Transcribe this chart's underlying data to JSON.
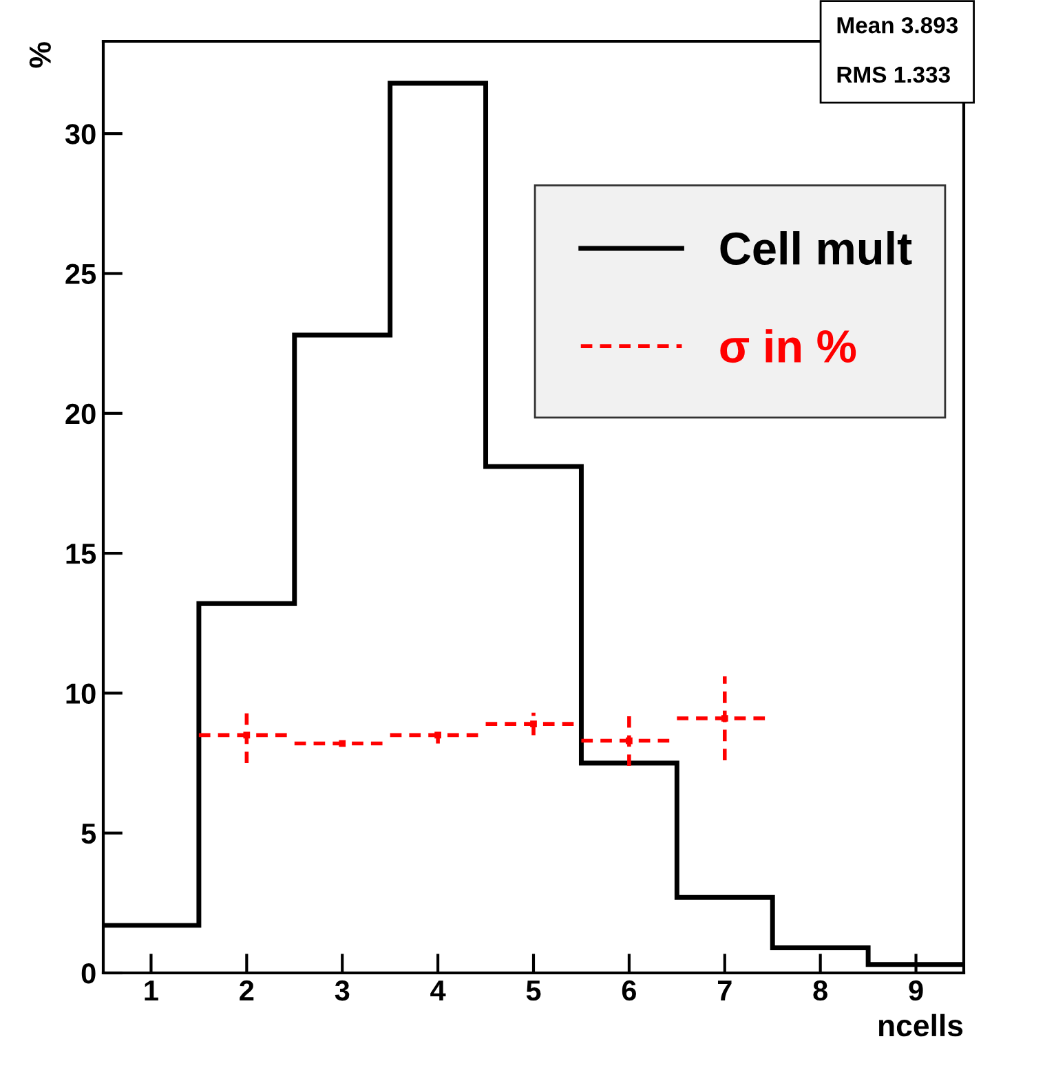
{
  "chart_data": {
    "type": "histogram",
    "xlabel": "ncells",
    "ylabel": "%",
    "bins": [
      0.5,
      1.5,
      2.5,
      3.5,
      4.5,
      5.5,
      6.5,
      7.5,
      8.5,
      9.5
    ],
    "series": [
      {
        "name": "Cell mult",
        "color": "#000000",
        "values": [
          1.7,
          13.2,
          22.8,
          31.8,
          18.1,
          7.5,
          2.7,
          0.9,
          0.3
        ]
      },
      {
        "name": "σ in %",
        "type": "scatter",
        "color": "#ff0000",
        "marker": "square",
        "line_style": "dashed",
        "x": [
          2,
          3,
          4,
          5,
          6,
          7
        ],
        "values": [
          8.5,
          8.2,
          8.5,
          8.9,
          8.3,
          9.1
        ],
        "errors": [
          1.0,
          0.1,
          0.3,
          0.4,
          0.9,
          1.5
        ],
        "xerrors": [
          0.5,
          0.5,
          0.5,
          0.5,
          0.5,
          0.5
        ]
      }
    ],
    "xlim": [
      0.5,
      9.5
    ],
    "xticks": [
      1,
      2,
      3,
      4,
      5,
      6,
      7,
      8,
      9
    ],
    "ylim": [
      0,
      33.3
    ],
    "yticks": [
      0,
      5,
      10,
      15,
      20,
      25,
      30
    ],
    "legend": "top right",
    "grid": false,
    "annotations": [
      "Mean 3.893",
      "RMS 1.333"
    ]
  }
}
